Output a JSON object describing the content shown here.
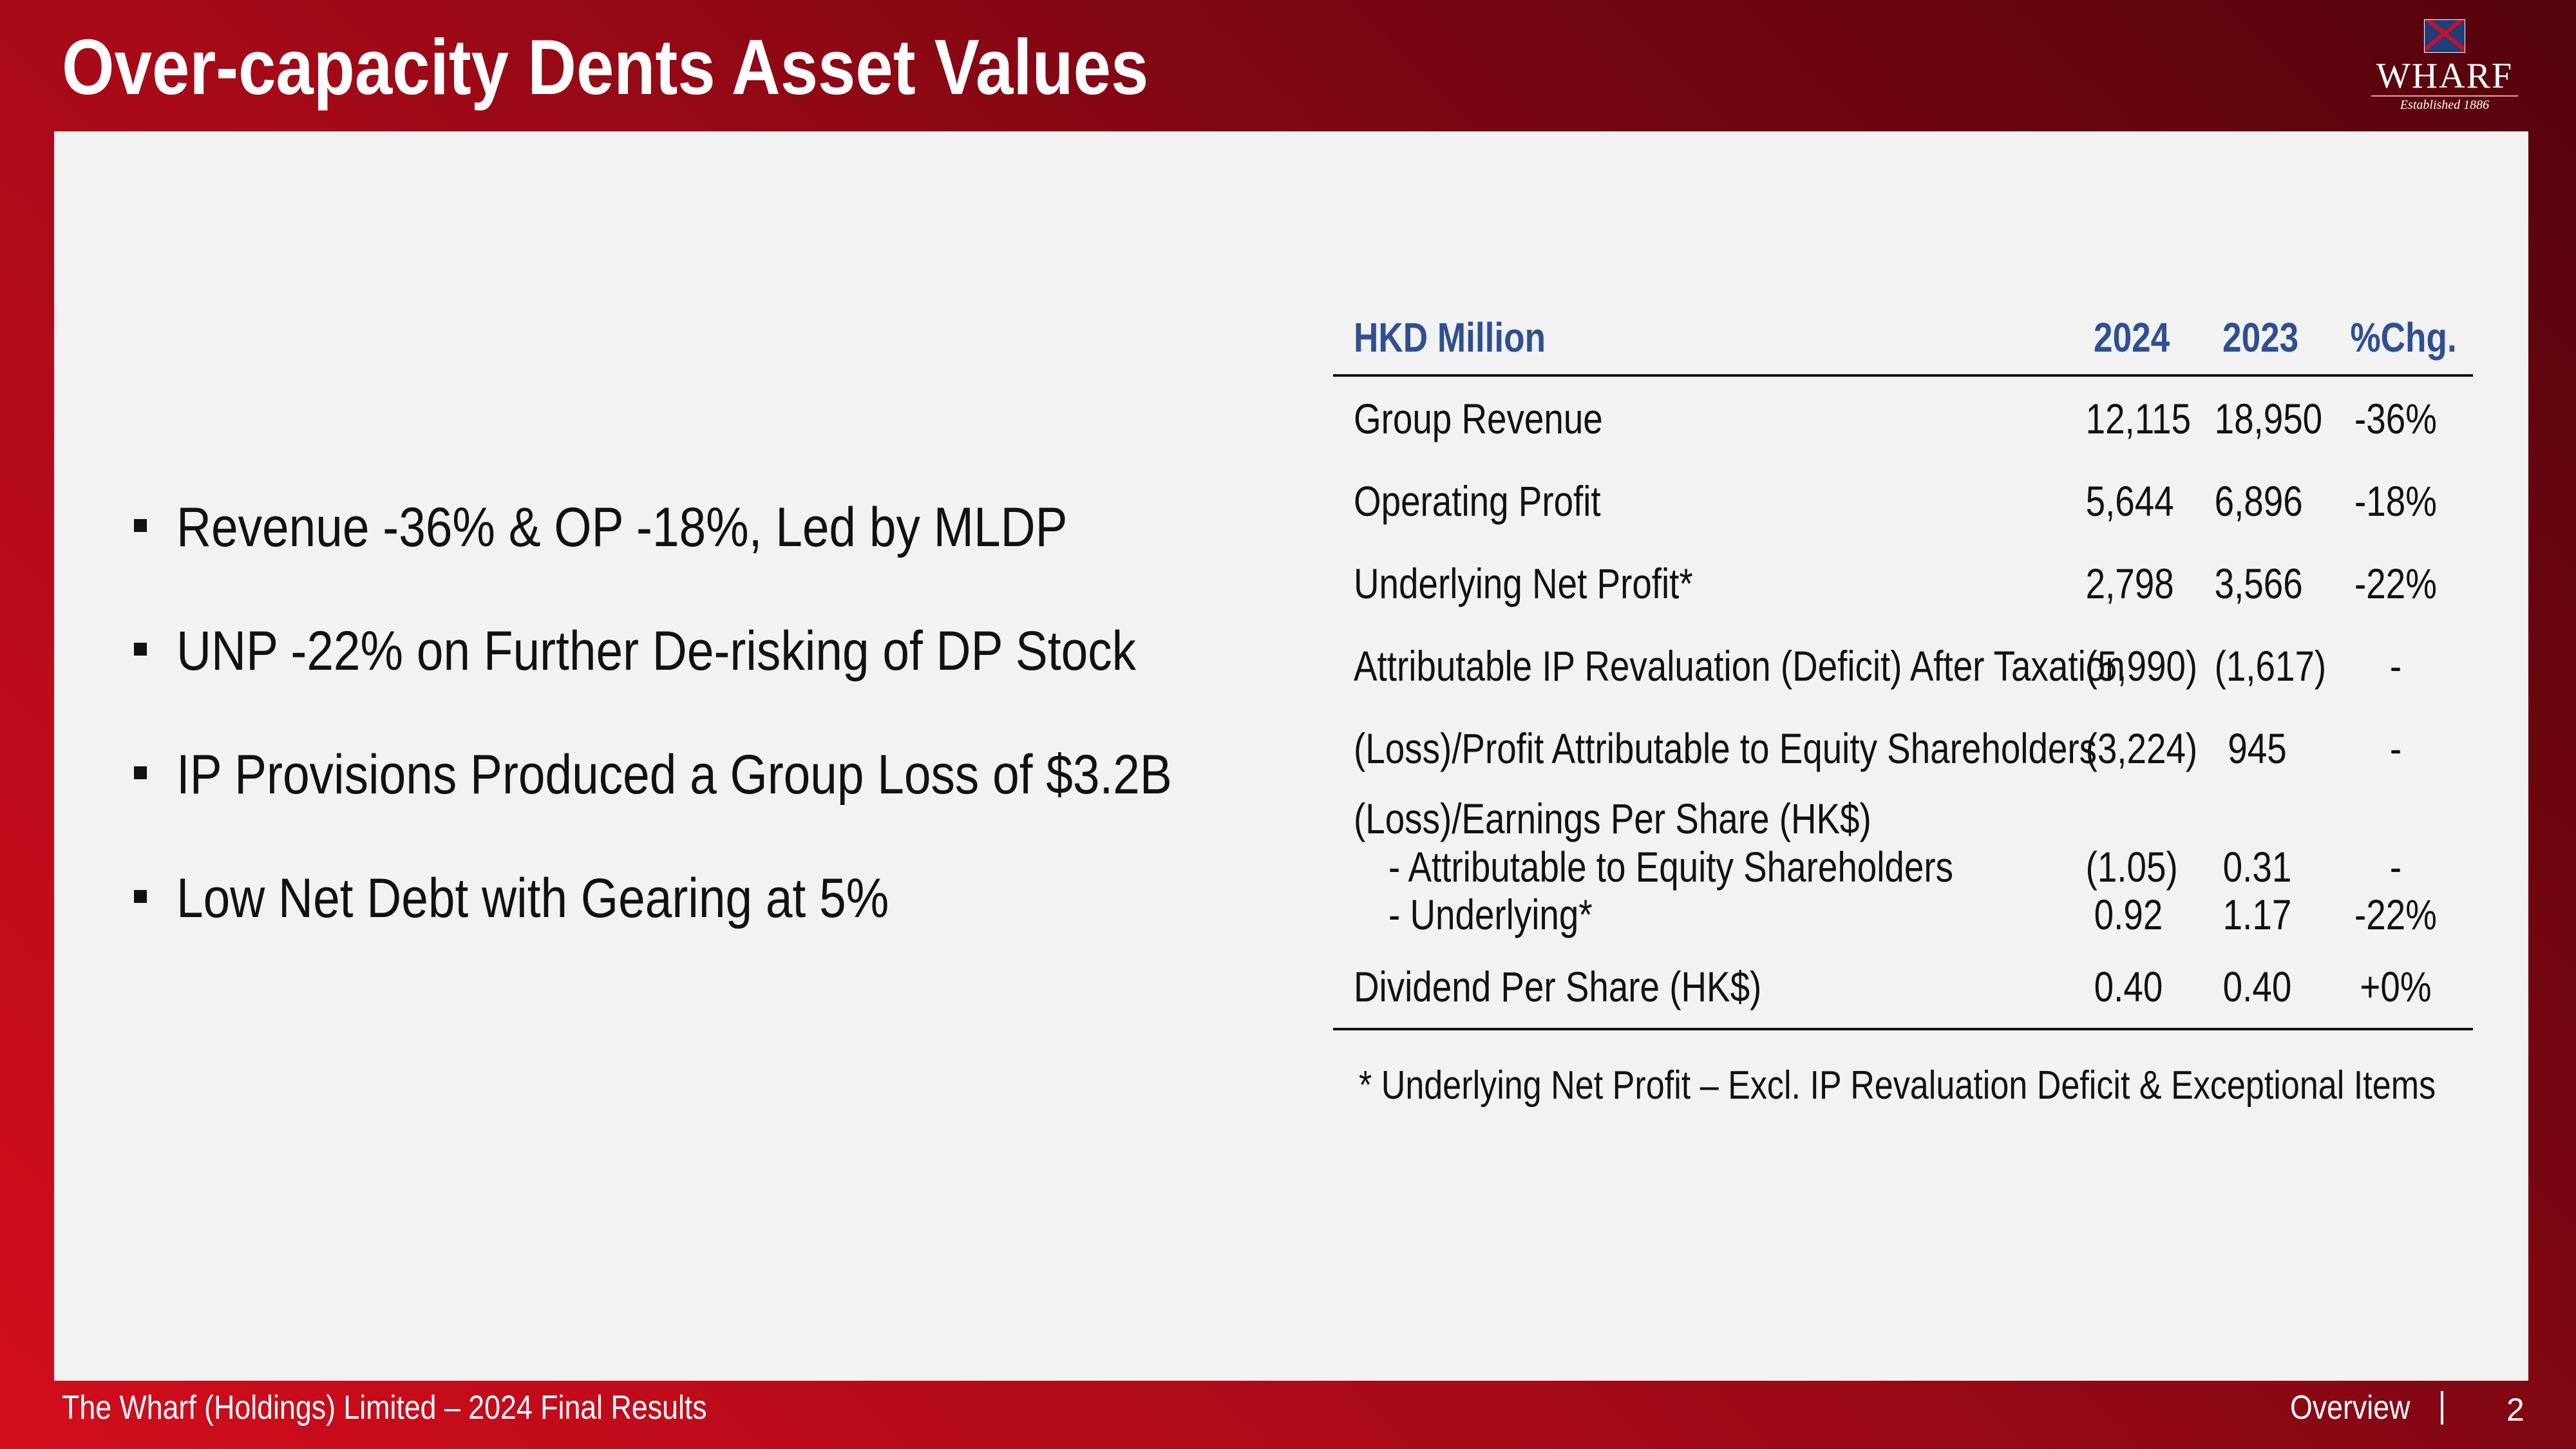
{
  "header": {
    "title": "Over-capacity Dents Asset Values",
    "logo": {
      "name": "WHARF",
      "tagline": "Established 1886",
      "icon": "wharf-flag-icon"
    }
  },
  "bullets": [
    "Revenue -36% & OP -18%, Led by MLDP",
    "UNP -22% on Further De-risking of DP Stock",
    "IP Provisions Produced a Group Loss of $3.2B",
    "Low Net Debt with Gearing at 5%"
  ],
  "table": {
    "headers": {
      "label": "HKD Million",
      "y2024": "2024",
      "y2023": "2023",
      "chg": "%Chg."
    },
    "rows": [
      {
        "label": "Group Revenue",
        "y2024": "12,115",
        "y2023": "18,950",
        "chg": "-36%"
      },
      {
        "label": "Operating Profit",
        "y2024": "5,644",
        "y2023": "6,896",
        "chg": "-18%"
      },
      {
        "label": "Underlying Net Profit*",
        "y2024": "2,798",
        "y2023": "3,566",
        "chg": "-22%"
      },
      {
        "label": "Attributable IP Revaluation (Deficit) After Taxation",
        "y2024": "(5,990)",
        "y2023": "(1,617)",
        "chg": "-"
      },
      {
        "label": "(Loss)/Profit Attributable to Equity Shareholders",
        "y2024": "(3,224)",
        "y2023": "945",
        "chg": "-"
      },
      {
        "label": "(Loss)/Earnings Per Share (HK$)",
        "y2024": "",
        "y2023": "",
        "chg": ""
      },
      {
        "label": "- Attributable to Equity Shareholders",
        "y2024": "(1.05)",
        "y2023": "0.31",
        "chg": "-"
      },
      {
        "label": "- Underlying*",
        "y2024": "0.92",
        "y2023": "1.17",
        "chg": "-22%"
      },
      {
        "label": "Dividend Per Share (HK$)",
        "y2024": "0.40",
        "y2023": "0.40",
        "chg": "+0%"
      }
    ],
    "footnote": "* Underlying Net Profit – Excl. IP Revaluation Deficit & Exceptional Items"
  },
  "footer": {
    "left": "The Wharf (Holdings) Limited – 2024 Final Results",
    "section": "Overview",
    "separator": "|",
    "page": "2"
  },
  "colors": {
    "brand_red": "#c00a1a",
    "header_blue": "#2e4f92",
    "panel": "#f2f2f2"
  }
}
